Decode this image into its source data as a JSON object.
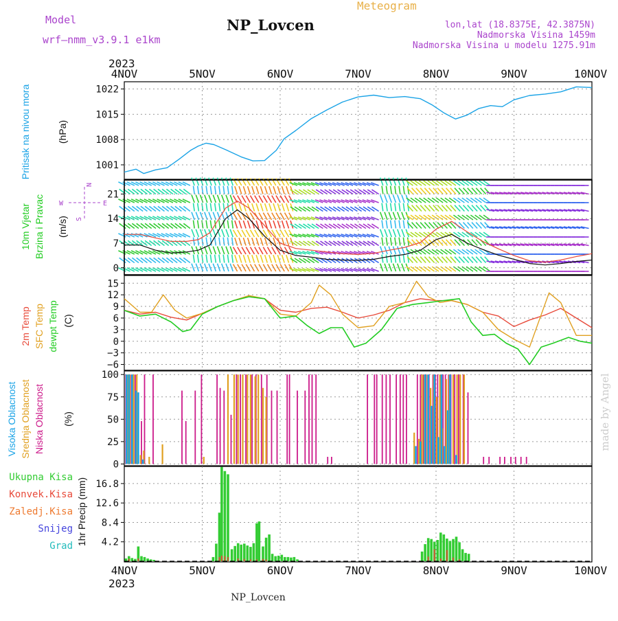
{
  "header": {
    "model_label": "Model",
    "model_name": "wrf–nmm_v3.9.1 e1km",
    "station": "NP_Lovcen",
    "product": "Meteogram",
    "lonlat": "lon,lat (18.8375E, 42.3875N)",
    "elevation": "Nadmorska Visina 1459m",
    "model_elevation": "Nadmorska Visina u modelu 1275.91m",
    "year_top": "2023",
    "year_bottom": "2023",
    "footer_station": "NP_Lovcen",
    "credit": "made by Angel"
  },
  "colors": {
    "pressure": "#1aa3e6",
    "temp2m": "#e84a3a",
    "sfc_temp": "#e0a020",
    "dewpoint": "#22cc22",
    "cloud_high": "#1aa3e6",
    "cloud_mid": "#e0a020",
    "cloud_low": "#cc1a8a",
    "precip_total": "#33cc33",
    "precip_conv": "#e84a3a",
    "precip_frz": "#ee7a30",
    "precip_snow": "#4444dd",
    "precip_hail": "#22bbbb",
    "title_purple": "#aa44cc",
    "wind_purple": "#aa44cc",
    "credit_gray": "#cccccc"
  },
  "chart_data": [
    {
      "type": "line",
      "panel": "pressure",
      "ylabel_lines": [
        "Pritisak na nivou mora",
        "(hPa)"
      ],
      "x_ticks": [
        "4NOV",
        "5NOV",
        "6NOV",
        "7NOV",
        "8NOV",
        "9NOV",
        "10NOV"
      ],
      "x_range_days": [
        0,
        6
      ],
      "y_ticks": [
        1001,
        1008,
        1015,
        1022
      ],
      "ylim": [
        997,
        1024
      ],
      "grid": true,
      "series": [
        {
          "key": "pressure",
          "x": [
            0,
            0.15,
            0.25,
            0.4,
            0.55,
            0.7,
            0.85,
            0.95,
            1.05,
            1.15,
            1.3,
            1.5,
            1.65,
            1.8,
            1.95,
            2.05,
            2.2,
            2.4,
            2.6,
            2.8,
            3.0,
            3.2,
            3.4,
            3.6,
            3.8,
            3.95,
            4.1,
            4.25,
            4.4,
            4.55,
            4.7,
            4.85,
            5.0,
            5.2,
            5.4,
            5.6,
            5.8,
            6.0
          ],
          "values": [
            999,
            999.8,
            998.6,
            999.6,
            1000.2,
            1002.5,
            1005,
            1006.2,
            1007,
            1006.6,
            1005.2,
            1003.2,
            1002.1,
            1002.2,
            1005,
            1008.2,
            1010.5,
            1013.8,
            1016.2,
            1018.4,
            1019.8,
            1020.3,
            1019.6,
            1019.9,
            1019.3,
            1017.6,
            1015.4,
            1013.7,
            1014.8,
            1016.6,
            1017.4,
            1017.1,
            1019,
            1020.2,
            1020.6,
            1021.2,
            1022.6,
            1022.4
          ]
        }
      ]
    },
    {
      "type": "line",
      "panel": "wind",
      "ylabel_lines": [
        "10m Vjetar",
        "Brzina i Pravac",
        "(m/s)"
      ],
      "compass_labels": {
        "north": "N",
        "south": "S",
        "west": "W",
        "east": "E"
      },
      "x_range_days": [
        0,
        6
      ],
      "y_ticks": [
        0,
        7,
        14,
        21
      ],
      "ylim": [
        -2,
        25
      ],
      "grid": true,
      "series": [
        {
          "key": "speed",
          "x": [
            0,
            0.2,
            0.4,
            0.6,
            0.8,
            0.95,
            1.1,
            1.3,
            1.45,
            1.6,
            1.8,
            2.0,
            2.2,
            2.4,
            2.6,
            2.8,
            3.0,
            3.2,
            3.4,
            3.6,
            3.8,
            4.0,
            4.2,
            4.4,
            4.6,
            4.8,
            5.0,
            5.2,
            5.4,
            5.6,
            5.8,
            6.0
          ],
          "values": [
            6.5,
            6.5,
            5,
            4.2,
            4.5,
            5,
            6.5,
            14,
            16.5,
            14,
            9,
            5,
            3.5,
            3,
            2.4,
            2.2,
            2.1,
            2.4,
            3.2,
            3.8,
            5,
            8,
            9.5,
            7,
            5.2,
            3.6,
            2.4,
            1.2,
            0.8,
            1.2,
            1.8,
            2.2
          ]
        },
        {
          "key": "gust",
          "x": [
            0,
            0.2,
            0.4,
            0.6,
            0.8,
            0.95,
            1.1,
            1.3,
            1.45,
            1.6,
            1.8,
            2.0,
            2.2,
            2.4,
            2.6,
            2.8,
            3.0,
            3.2,
            3.4,
            3.6,
            3.8,
            4.0,
            4.2,
            4.4,
            4.6,
            4.8,
            5.0,
            5.2,
            5.4,
            5.6,
            5.8,
            6.0
          ],
          "values": [
            9.5,
            9.5,
            8.5,
            7.5,
            7.5,
            8,
            10,
            17,
            19,
            17,
            12,
            7,
            5.5,
            5,
            4.5,
            4,
            3.8,
            4.1,
            5,
            5.8,
            7.2,
            11,
            13.2,
            10.2,
            7.5,
            5.4,
            3.5,
            2,
            1.6,
            2.2,
            3.2,
            4
          ]
        }
      ]
    },
    {
      "type": "line",
      "panel": "temperature",
      "ylabel_lines": [
        "2m Temp",
        "SFC Temp",
        "dewpt Temp",
        "(C)"
      ],
      "x_range_days": [
        0,
        6
      ],
      "y_ticks": [
        -6,
        -3,
        0,
        3,
        6,
        9,
        12,
        15
      ],
      "ylim": [
        -7.5,
        17
      ],
      "grid": true,
      "series": [
        {
          "key": "temp2m",
          "name": "2m Temp",
          "x": [
            0,
            0.2,
            0.4,
            0.6,
            0.8,
            1.0,
            1.2,
            1.4,
            1.6,
            1.8,
            2.0,
            2.2,
            2.4,
            2.6,
            2.8,
            3.0,
            3.2,
            3.4,
            3.6,
            3.8,
            4.0,
            4.2,
            4.4,
            4.6,
            4.8,
            5.0,
            5.2,
            5.4,
            5.6,
            5.8,
            6.0
          ],
          "values": [
            8,
            7,
            7.5,
            6.2,
            5.5,
            7.2,
            9,
            10.5,
            11.5,
            11,
            8,
            7.5,
            8.5,
            8.8,
            7.5,
            6,
            6.8,
            8,
            10,
            11,
            10.5,
            10.5,
            9.5,
            7.5,
            6.5,
            3.8,
            5.5,
            6.8,
            8.5,
            6,
            3.5
          ]
        },
        {
          "key": "sfc_temp",
          "name": "SFC Temp",
          "x": [
            0,
            0.2,
            0.35,
            0.5,
            0.65,
            0.8,
            1.0,
            1.2,
            1.4,
            1.6,
            1.8,
            2.0,
            2.2,
            2.4,
            2.5,
            2.65,
            2.8,
            3.0,
            3.2,
            3.4,
            3.6,
            3.75,
            3.9,
            4.05,
            4.2,
            4.4,
            4.6,
            4.8,
            5.0,
            5.2,
            5.45,
            5.6,
            5.8,
            6.0
          ],
          "values": [
            11,
            7.5,
            7.5,
            12,
            8,
            6,
            7.2,
            9,
            10.5,
            11.8,
            11,
            7,
            6.5,
            10,
            14.5,
            12,
            7,
            3.5,
            4,
            9,
            10,
            15.5,
            11.5,
            10,
            10.5,
            9.5,
            7.5,
            3,
            0.5,
            -1.5,
            12.5,
            10,
            1.5,
            1.5
          ]
        },
        {
          "key": "dewpoint",
          "name": "dewpt Temp",
          "x": [
            0,
            0.2,
            0.4,
            0.6,
            0.75,
            0.85,
            1.0,
            1.2,
            1.4,
            1.6,
            1.8,
            2.0,
            2.2,
            2.35,
            2.5,
            2.65,
            2.8,
            2.95,
            3.1,
            3.3,
            3.5,
            3.7,
            3.9,
            4.1,
            4.3,
            4.45,
            4.6,
            4.75,
            4.9,
            5.05,
            5.2,
            5.35,
            5.5,
            5.7,
            5.85,
            6.0
          ],
          "values": [
            8,
            6.5,
            7,
            5,
            2.5,
            3,
            7,
            9,
            10.5,
            11.5,
            11,
            6,
            6.5,
            4,
            2,
            3.5,
            3.5,
            -1.5,
            -0.5,
            3,
            8.5,
            9.5,
            10,
            10.5,
            11,
            5,
            1.5,
            1.8,
            -0.5,
            -2,
            -6,
            -1.5,
            -0.5,
            1,
            0,
            -0.5
          ]
        }
      ]
    },
    {
      "type": "bar",
      "panel": "cloud",
      "ylabel_lines": [
        "Visoka Oblacnost",
        "Srednja Oblacnost",
        "Niska Oblacnost",
        "(%)"
      ],
      "x_range_days": [
        0,
        6
      ],
      "y_ticks": [
        0,
        25,
        50,
        75,
        100
      ],
      "ylim": [
        -2,
        104
      ],
      "grid": true,
      "series": [
        {
          "key": "low",
          "name": "Niska Oblacnost",
          "x": [
            0.02,
            0.05,
            0.09,
            0.14,
            0.22,
            0.26,
            0.37,
            0.74,
            0.79,
            0.91,
            0.99,
            1.19,
            1.23,
            1.28,
            1.33,
            1.37,
            1.44,
            1.49,
            1.56,
            1.64,
            1.69,
            1.76,
            1.83,
            1.89,
            1.96,
            2.09,
            2.12,
            2.22,
            2.32,
            2.37,
            2.41,
            2.46,
            2.61,
            2.66,
            3.12,
            3.21,
            3.24,
            3.31,
            3.36,
            3.41,
            3.49,
            3.54,
            3.58,
            3.62,
            3.76,
            3.8,
            3.84,
            3.87,
            3.91,
            3.96,
            3.99,
            4.02,
            4.06,
            4.09,
            4.12,
            4.16,
            4.19,
            4.24,
            4.29,
            4.35,
            4.41,
            4.61,
            4.68,
            4.82,
            4.88,
            4.96,
            5.02,
            5.09,
            5.16
          ],
          "values": [
            100,
            82,
            100,
            100,
            48,
            100,
            100,
            82,
            48,
            82,
            100,
            100,
            85,
            82,
            100,
            55,
            100,
            100,
            100,
            100,
            100,
            100,
            100,
            82,
            82,
            100,
            100,
            82,
            82,
            100,
            100,
            100,
            8,
            8,
            100,
            100,
            100,
            100,
            100,
            100,
            100,
            100,
            100,
            100,
            100,
            100,
            100,
            100,
            100,
            100,
            100,
            100,
            100,
            100,
            100,
            100,
            100,
            100,
            100,
            100,
            80,
            8,
            8,
            8,
            8,
            8,
            8,
            8,
            8
          ]
        },
        {
          "key": "mid",
          "name": "Srednja Oblacnost",
          "x": [
            0.04,
            0.07,
            0.12,
            0.16,
            0.21,
            0.25,
            0.32,
            0.49,
            1.02,
            1.33,
            1.41,
            1.46,
            1.52,
            1.58,
            1.62,
            1.68,
            1.72,
            1.78,
            1.82,
            3.72,
            3.78,
            3.82,
            3.85,
            3.89,
            3.93,
            3.97,
            4.01,
            4.05,
            4.08,
            4.13,
            4.17,
            4.22,
            4.27,
            4.31,
            4.36
          ],
          "values": [
            100,
            100,
            100,
            100,
            10,
            15,
            8,
            22,
            8,
            100,
            100,
            100,
            100,
            100,
            100,
            98,
            100,
            85,
            75,
            35,
            28,
            100,
            100,
            100,
            85,
            100,
            75,
            100,
            40,
            95,
            100,
            100,
            100,
            100,
            100
          ]
        },
        {
          "key": "high",
          "name": "Visoka Oblacnost",
          "x": [
            0.03,
            0.06,
            0.1,
            0.15,
            0.18,
            0.24,
            3.74,
            3.8,
            3.86,
            3.9,
            3.94,
            3.98,
            4.03,
            4.07,
            4.11,
            4.15,
            4.18,
            4.26
          ],
          "values": [
            100,
            100,
            100,
            82,
            80,
            5,
            20,
            25,
            100,
            100,
            65,
            100,
            30,
            100,
            20,
            60,
            100,
            10
          ]
        }
      ]
    },
    {
      "type": "bar",
      "panel": "precip",
      "ylabel_lines": [
        "1hr Precip (mm)"
      ],
      "legend": [
        "Ukupna Kisa",
        "Konvek.Kisa",
        "Zaledj.Kisa",
        "Snijeg",
        "Grad"
      ],
      "x_ticks": [
        "4NOV",
        "5NOV",
        "6NOV",
        "7NOV",
        "8NOV",
        "9NOV",
        "10NOV"
      ],
      "x_range_days": [
        0,
        6
      ],
      "y_ticks": [
        4.2,
        8.4,
        12.6,
        16.8
      ],
      "ylim": [
        0,
        20.5
      ],
      "grid": true,
      "series": [
        {
          "key": "total",
          "name": "Ukupna Kisa",
          "x": [
            0.02,
            0.06,
            0.1,
            0.14,
            0.18,
            0.22,
            0.26,
            0.3,
            0.34,
            0.38,
            1.14,
            1.18,
            1.22,
            1.25,
            1.29,
            1.33,
            1.38,
            1.42,
            1.46,
            1.5,
            1.54,
            1.58,
            1.62,
            1.66,
            1.7,
            1.73,
            1.78,
            1.82,
            1.86,
            1.9,
            1.94,
            1.98,
            2.02,
            2.06,
            2.1,
            2.14,
            2.18,
            2.22,
            3.82,
            3.86,
            3.9,
            3.94,
            3.98,
            4.02,
            4.06,
            4.1,
            4.14,
            4.18,
            4.22,
            4.26,
            4.3,
            4.34,
            4.38,
            4.42
          ],
          "values": [
            0.6,
            1.1,
            0.7,
            0.5,
            3.2,
            1.1,
            0.9,
            0.6,
            0.4,
            0.3,
            0.9,
            3.8,
            10.5,
            20.4,
            19.5,
            18.8,
            2.6,
            3.3,
            3.9,
            3.6,
            3.8,
            3.4,
            3.1,
            3.9,
            8.2,
            8.6,
            3.2,
            5.1,
            5.8,
            1.6,
            1.1,
            1.2,
            1.4,
            0.9,
            0.9,
            0.8,
            0.9,
            0.4,
            2.1,
            3.7,
            5.0,
            4.8,
            4.2,
            4.6,
            6.2,
            5.8,
            4.9,
            4.4,
            4.8,
            5.3,
            4.1,
            2.6,
            1.8,
            1.6
          ]
        },
        {
          "key": "conv",
          "name": "Konvek.Kisa",
          "x": [
            0.06,
            0.18,
            1.22,
            1.25,
            1.29,
            1.33,
            1.46,
            1.54,
            1.62,
            1.7,
            1.78,
            1.82,
            3.9,
            3.98,
            4.06,
            4.14,
            4.22,
            4.3
          ],
          "values": [
            0.5,
            0.6,
            0.9,
            1.2,
            1.1,
            0.9,
            0.6,
            0.5,
            0.4,
            0.4,
            0.5,
            0.4,
            1.0,
            2.6,
            0.6,
            2.4,
            0.8,
            0.4
          ]
        }
      ]
    }
  ]
}
